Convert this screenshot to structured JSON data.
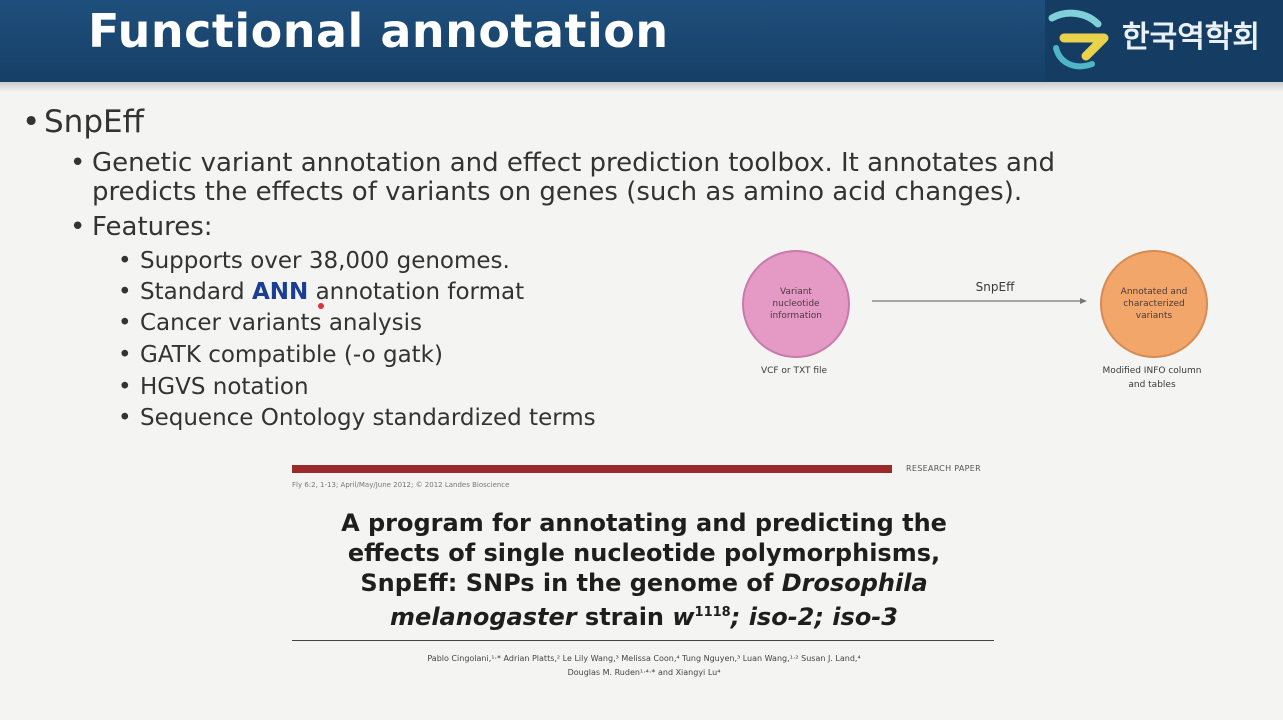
{
  "header": {
    "title": "Functional annotation",
    "logo_text": "한국역학회"
  },
  "bullets": {
    "level1": "SnpEff",
    "desc_line1": "Genetic variant annotation and effect prediction toolbox. It annotates and",
    "desc_line2": "predicts the effects of variants on genes (such as amino acid changes).",
    "features_label": "Features:",
    "features": [
      "Supports over 38,000 genomes.",
      "Standard ",
      "Cancer variants analysis",
      "GATK compatible (-o gatk)",
      "HGVS notation",
      "Sequence Ontology standardized terms"
    ],
    "ann_highlight": "ANN",
    "ann_suffix": " annotation format"
  },
  "diagram": {
    "input_circle": "Variant nucleotide information",
    "input_caption": "VCF or TXT file",
    "arrow_label": "SnpEff",
    "output_circle": "Annotated and characterized variants",
    "output_caption": "Modified INFO column and tables",
    "colors": {
      "input": "#e59ac6",
      "output": "#f2a66a"
    }
  },
  "paper": {
    "section_tag": "RESEARCH PAPER",
    "citation": "Fly 6:2, 1-13; April/May/June 2012; © 2012 Landes Bioscience",
    "title_line1": "A program for annotating and predicting the",
    "title_line2": "effects of single nucleotide polymorphisms,",
    "title_line3_a": "SnpEff: SNPs in the genome of ",
    "title_line3_b": "Drosophila",
    "title_line4_a": "melanogaster",
    "title_line4_b": " strain ",
    "title_line4_c": "w",
    "title_line4_sup": "1118",
    "title_line4_d": "; iso-2; iso-3",
    "authors_line1": "Pablo Cingolani,¹·* Adrian Platts,² Le Lily Wang,³ Melissa Coon,⁴ Tung Nguyen,³ Luan Wang,¹·² Susan J. Land,⁴",
    "authors_line2": "Douglas M. Ruden¹·⁴·* and Xiangyi Lu⁴"
  }
}
